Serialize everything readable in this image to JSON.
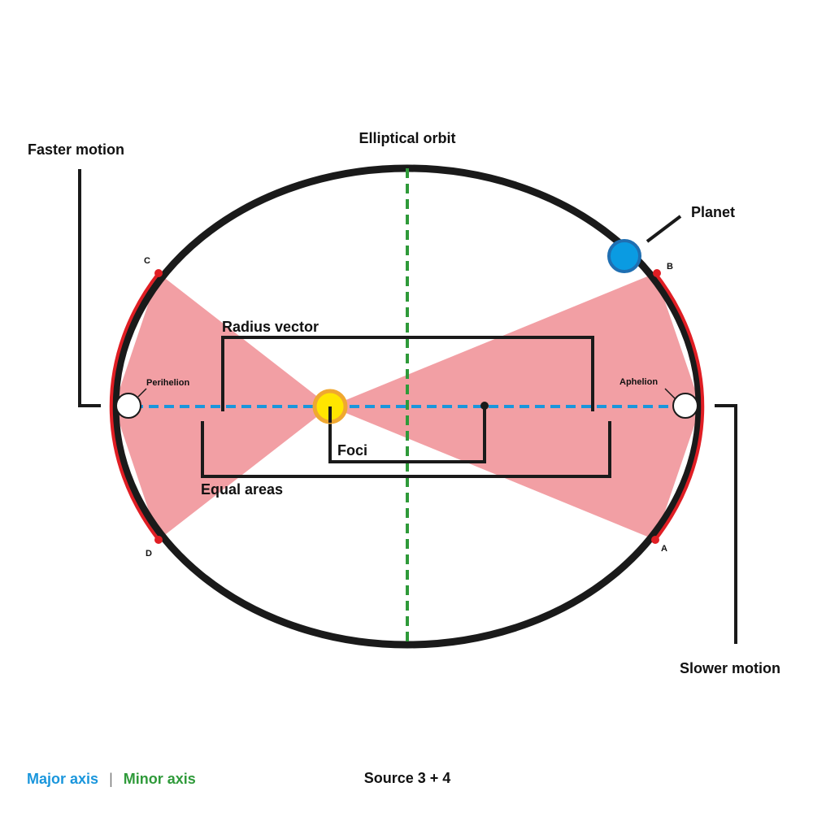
{
  "labels": {
    "elliptical_orbit": "Elliptical orbit",
    "planet": "Planet",
    "faster_motion": "Faster motion",
    "slower_motion": "Slower motion",
    "radius_vector": "Radius vector",
    "foci": "Foci",
    "equal_areas": "Equal areas",
    "perihelion": "Perihelion",
    "aphelion": "Aphelion",
    "point_a": "A",
    "point_b": "B",
    "point_c": "C",
    "point_d": "D"
  },
  "legend": {
    "major_axis": "Major axis",
    "separator": "|",
    "minor_axis": "Minor axis"
  },
  "footer": {
    "source": "Source 3 + 4"
  },
  "colors": {
    "orbit": "#1a1a1a",
    "major_axis": "#1a96dc",
    "minor_axis": "#2f9a3a",
    "area_fill": "#f29fa4",
    "arc_red": "#e01e24",
    "sun_fill": "#ffe600",
    "sun_ring": "#f0a830",
    "planet_fill": "#0a9be2",
    "planet_ring": "#1f6fb2",
    "text": "#111111"
  }
}
